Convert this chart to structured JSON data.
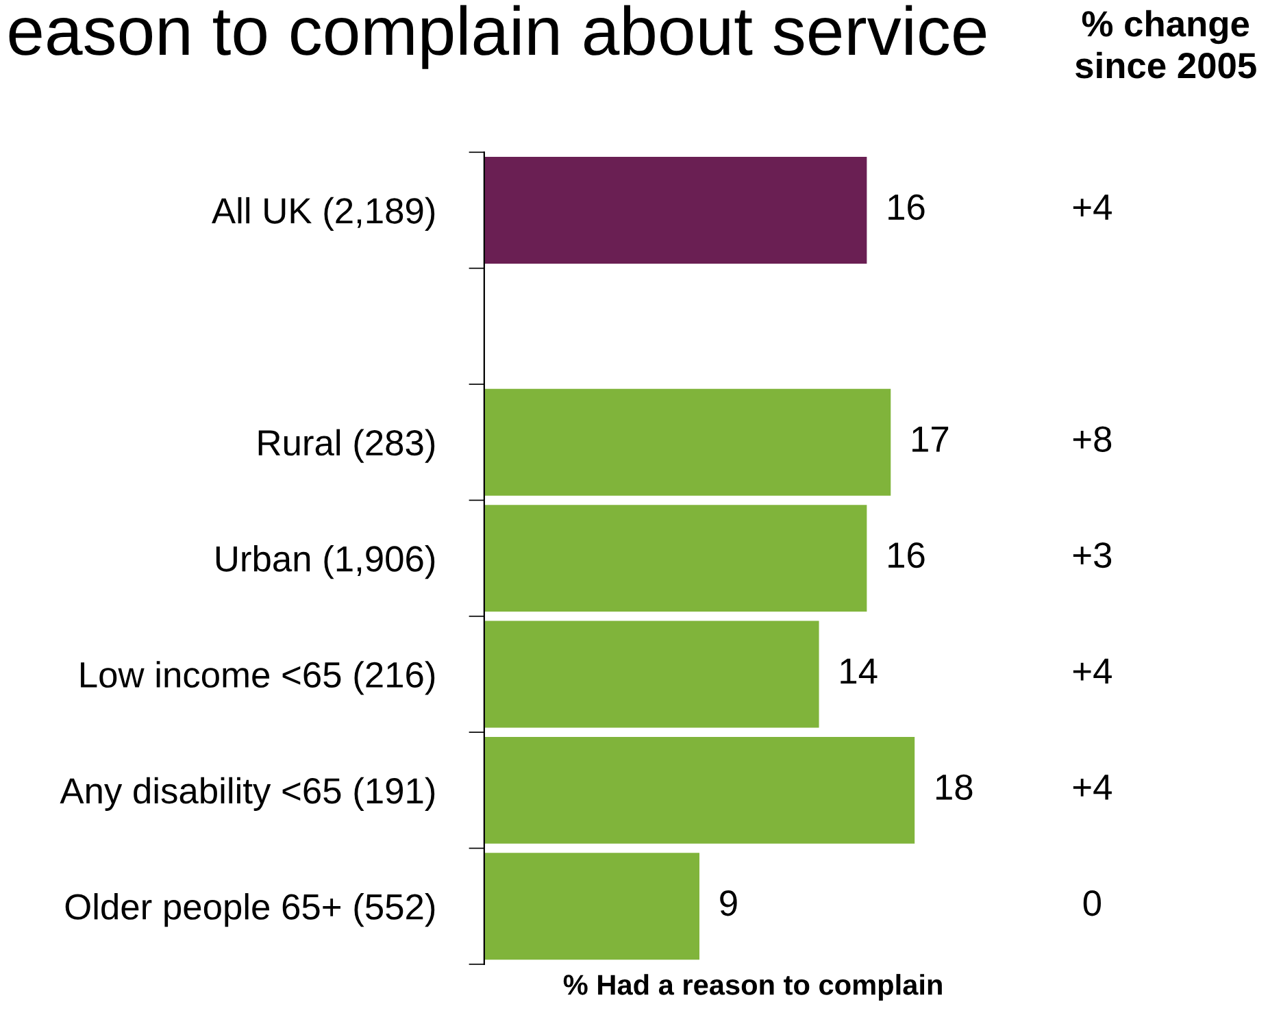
{
  "chart_data": {
    "type": "bar",
    "orientation": "horizontal",
    "title": "eason to complain about service",
    "xlabel": "% Had a reason to complain",
    "categories": [
      "All UK (2,189)",
      null,
      "Rural (283)",
      "Urban (1,906)",
      "Low income <65 (216)",
      "Any disability <65 (191)",
      "Older people 65+ (552)"
    ],
    "values": [
      16,
      null,
      17,
      16,
      14,
      18,
      9
    ],
    "colors": [
      "#6a1f53",
      null,
      "#80b43b",
      "#80b43b",
      "#80b43b",
      "#80b43b",
      "#80b43b"
    ],
    "data_labels": true,
    "annotations": [
      "% change\nsince 2005",
      "+4",
      null,
      "+8",
      "+3",
      "+4",
      "+4",
      "0"
    ]
  }
}
